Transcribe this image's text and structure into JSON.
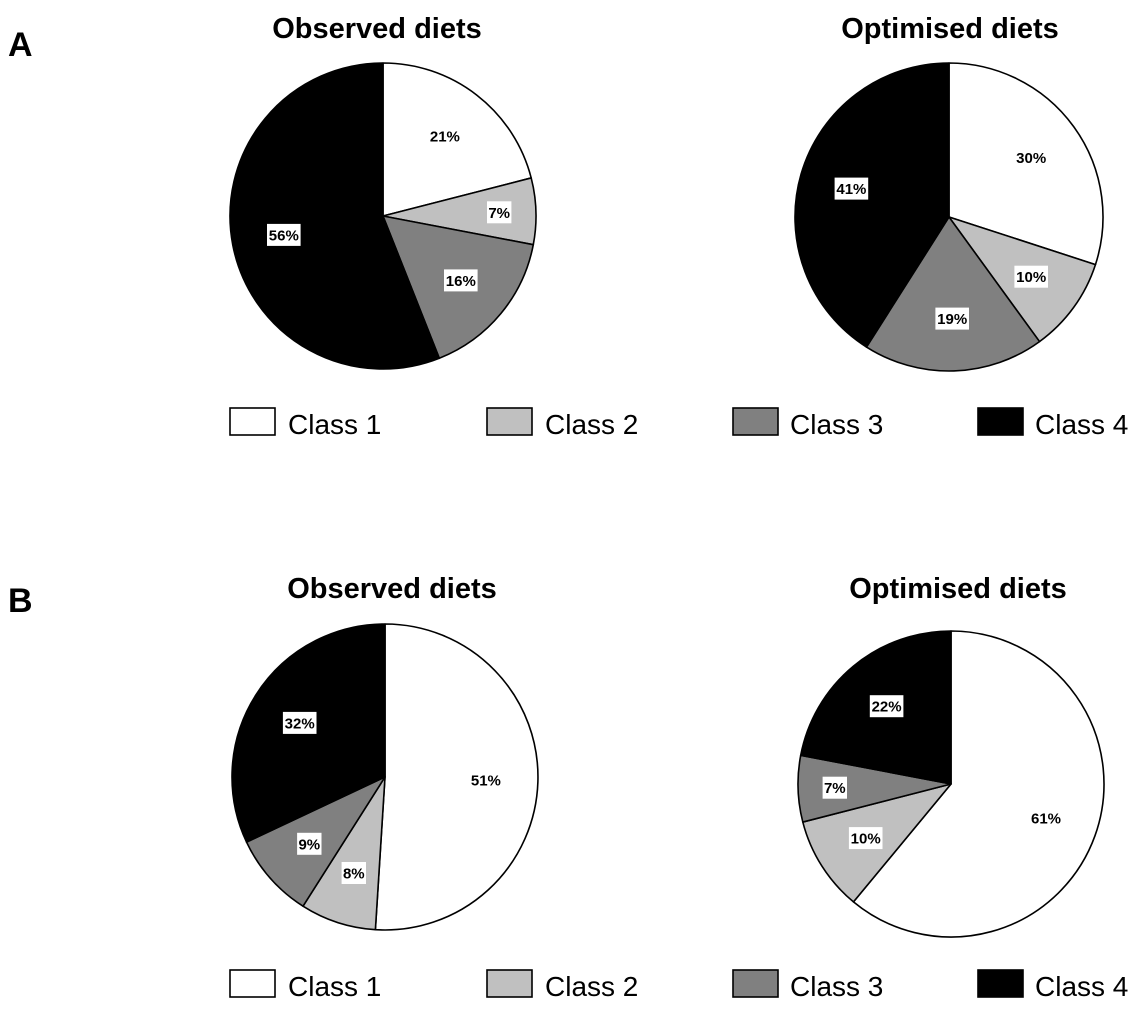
{
  "colors": {
    "Class 1": "#ffffff",
    "Class 2": "#c0c0c0",
    "Class 3": "#808080",
    "Class 4": "#000000"
  },
  "panels": [
    {
      "letter": "A",
      "legend": [
        "Class 1",
        "Class 2",
        "Class 3",
        "Class 4"
      ]
    },
    {
      "letter": "B",
      "legend": [
        "Class 1",
        "Class 2",
        "Class 3",
        "Class 4"
      ]
    }
  ],
  "chart_data": [
    {
      "type": "pie",
      "panel": "A",
      "title": "Observed diets",
      "categories": [
        "Class 1",
        "Class 2",
        "Class 3",
        "Class 4"
      ],
      "values": [
        21,
        7,
        16,
        56
      ],
      "labels": [
        "21%",
        "7%",
        "16%",
        "56%"
      ]
    },
    {
      "type": "pie",
      "panel": "A",
      "title": "Optimised diets",
      "categories": [
        "Class 1",
        "Class 2",
        "Class 3",
        "Class 4"
      ],
      "values": [
        30,
        10,
        19,
        41
      ],
      "labels": [
        "30%",
        "10%",
        "19%",
        "41%"
      ]
    },
    {
      "type": "pie",
      "panel": "B",
      "title": "Observed diets",
      "categories": [
        "Class 1",
        "Class 2",
        "Class 3",
        "Class 4"
      ],
      "values": [
        51,
        8,
        9,
        32
      ],
      "labels": [
        "51%",
        "8%",
        "9%",
        "32%"
      ]
    },
    {
      "type": "pie",
      "panel": "B",
      "title": "Optimised diets",
      "categories": [
        "Class 1",
        "Class 2",
        "Class 3",
        "Class 4"
      ],
      "values": [
        61,
        10,
        7,
        22
      ],
      "labels": [
        "61%",
        "10%",
        "7%",
        "22%"
      ]
    }
  ]
}
